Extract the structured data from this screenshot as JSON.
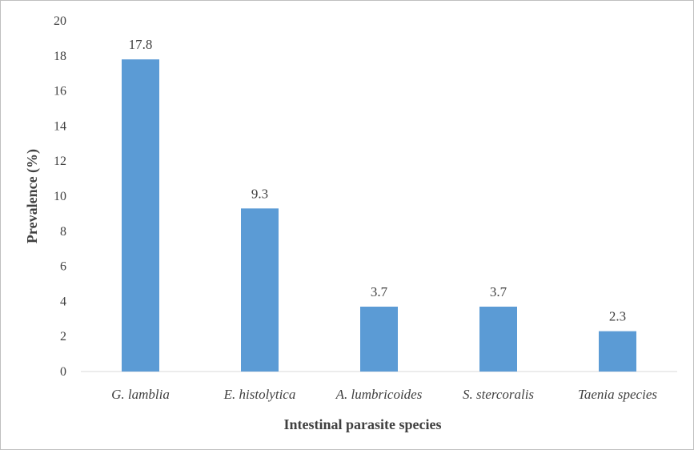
{
  "chart_data": {
    "type": "bar",
    "title": "",
    "xlabel": "Intestinal parasite species",
    "ylabel": "Prevalence (%)",
    "categories": [
      "G. lamblia",
      "E. histolytica",
      "A. lumbricoides",
      "S. stercoralis",
      "Taenia species"
    ],
    "values": [
      17.8,
      9.3,
      3.7,
      3.7,
      2.3
    ],
    "data_labels": [
      "17.8",
      "9.3",
      "3.7",
      "3.7",
      "2.3"
    ],
    "ylim": [
      0,
      20
    ],
    "yticks": [
      0,
      2,
      4,
      6,
      8,
      10,
      12,
      14,
      16,
      18,
      20
    ],
    "grid": false,
    "legend": "none",
    "bar_color": "#5b9bd5",
    "axis_color": "#d9d9d9"
  }
}
